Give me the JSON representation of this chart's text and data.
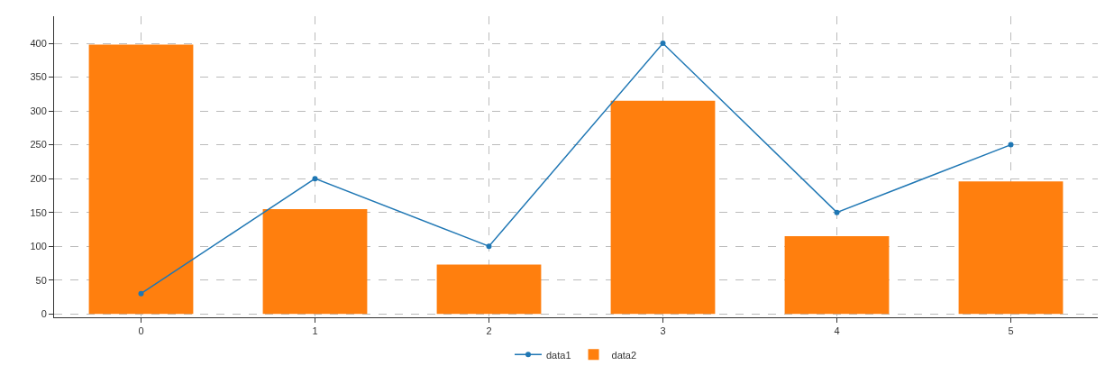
{
  "chart_data": {
    "type": "bar",
    "x": [
      0,
      1,
      2,
      3,
      4,
      5
    ],
    "series": [
      {
        "name": "data1",
        "color": "#1f77b4",
        "type": "line",
        "marker": "circle",
        "values": [
          30,
          200,
          100,
          400,
          150,
          250
        ]
      },
      {
        "name": "data2",
        "color": "#ff7f0e",
        "values": [
          398,
          155,
          73,
          315,
          115,
          196
        ]
      }
    ],
    "xlim": [
      -0.5,
      5.5
    ],
    "xticks": [
      0,
      1,
      2,
      3,
      4,
      5
    ],
    "ylim": [
      -5,
      440
    ],
    "yticks": [
      0,
      50,
      100,
      150,
      200,
      250,
      300,
      350,
      400
    ],
    "grid": true,
    "legend": "bottom"
  }
}
